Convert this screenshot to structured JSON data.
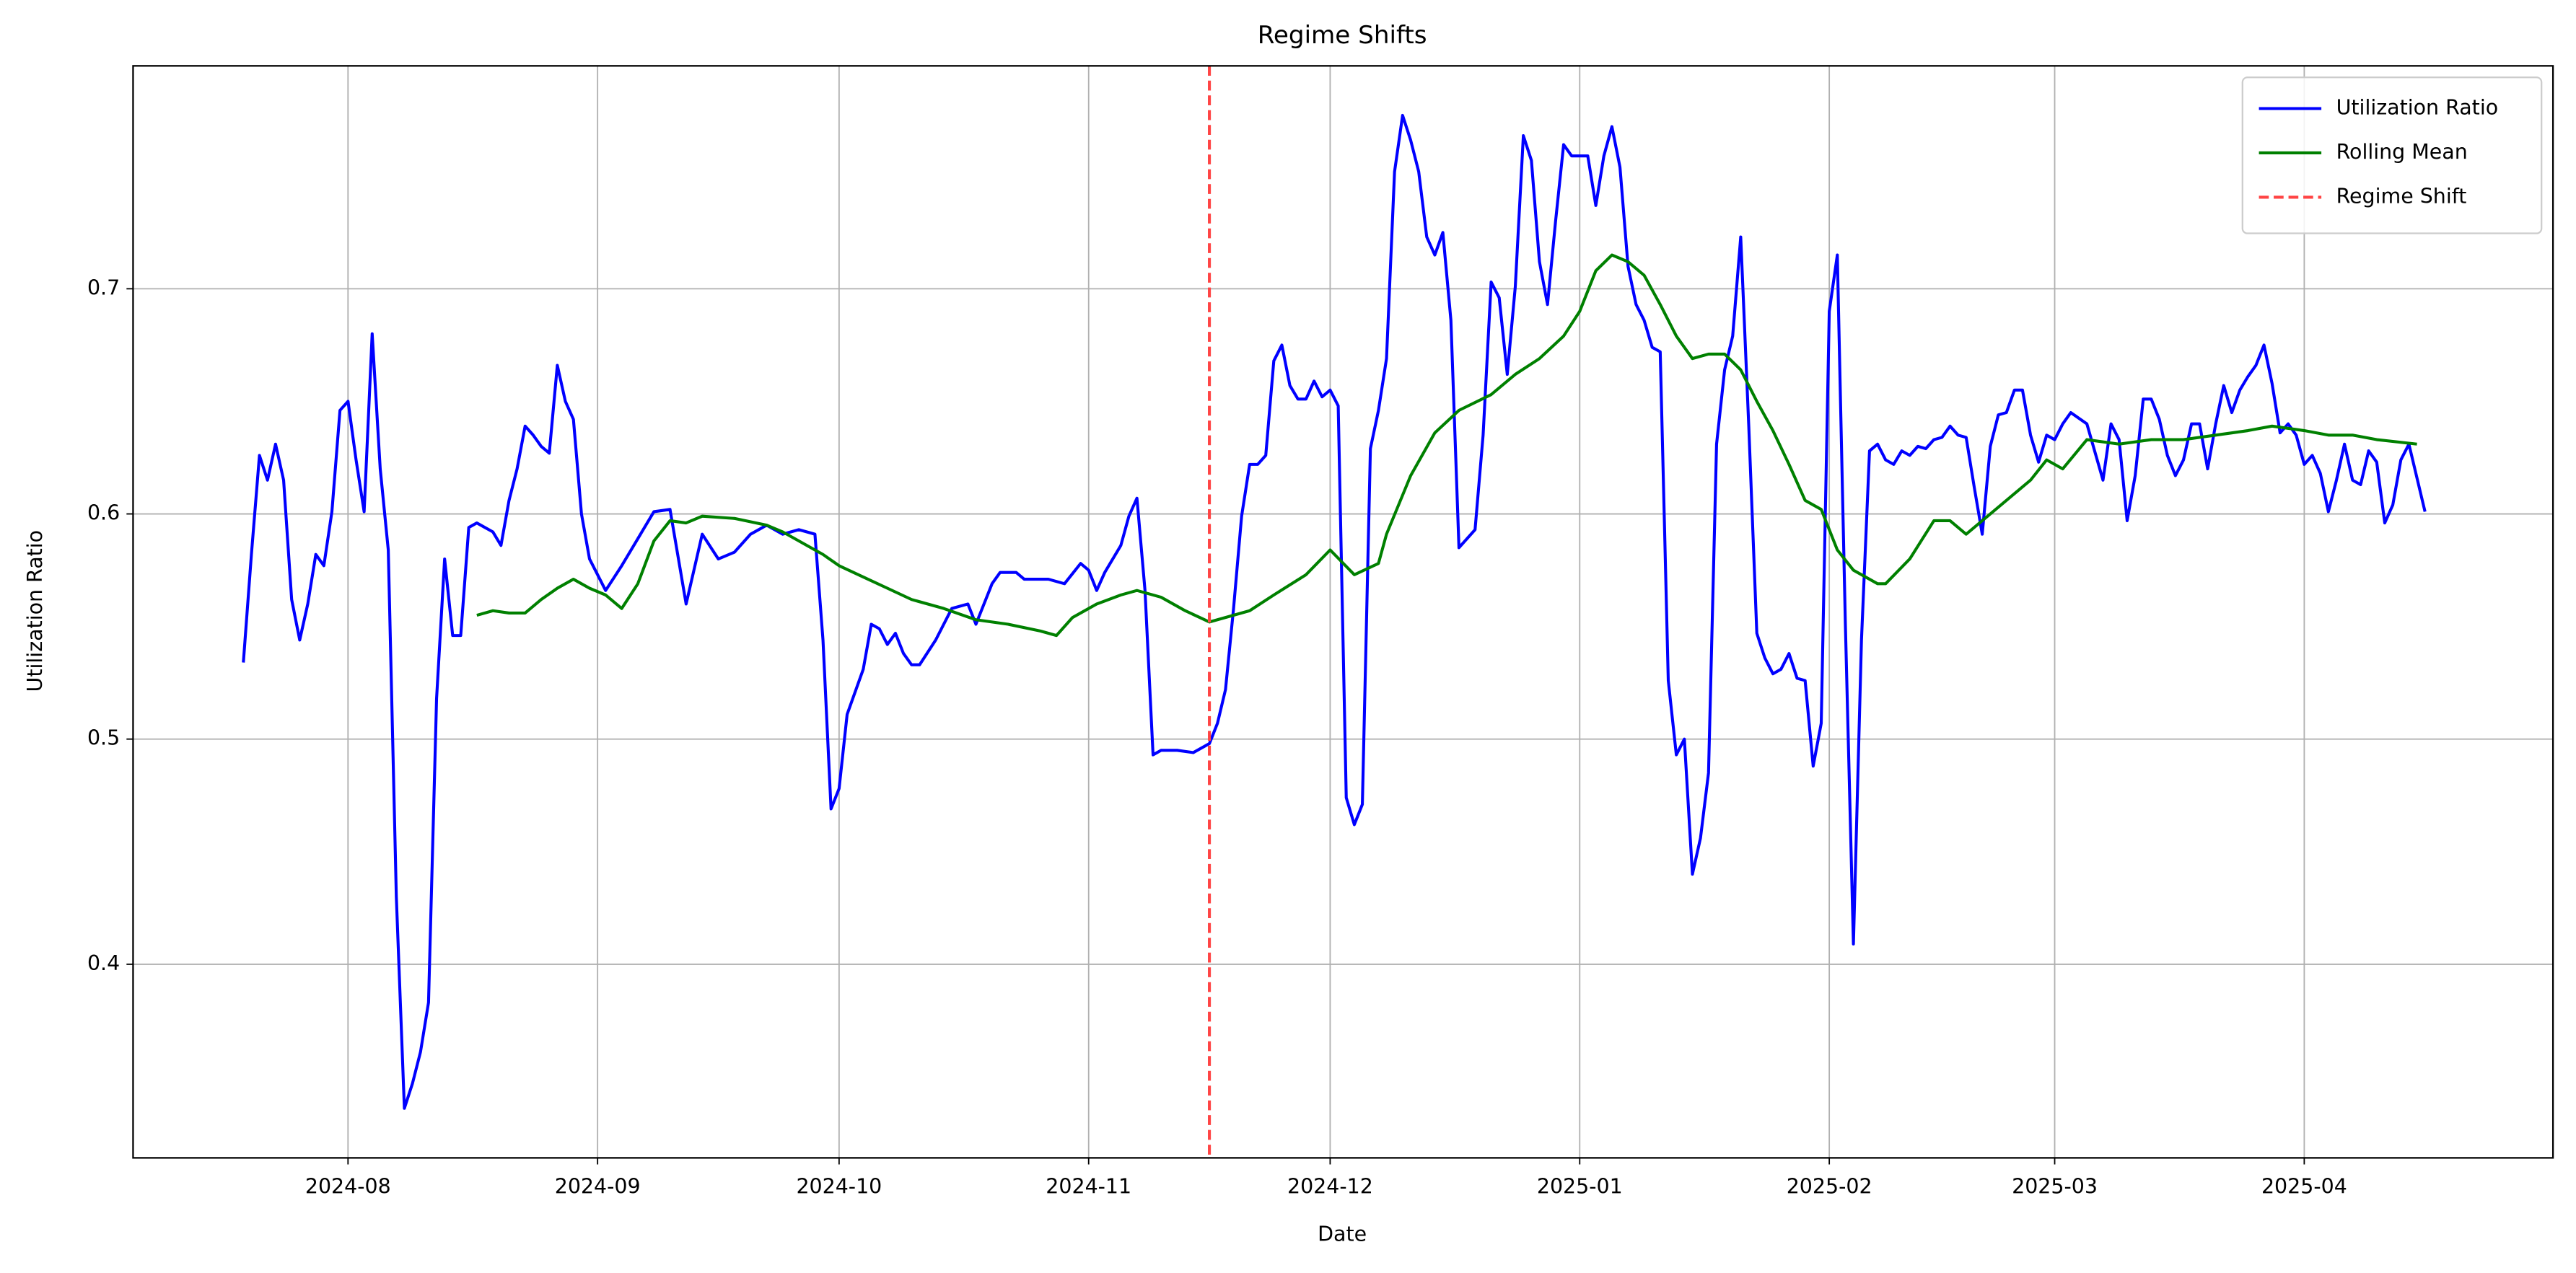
{
  "chart_data": {
    "type": "line",
    "title": "Regime Shifts",
    "xlabel": "Date",
    "ylabel": "Utilization Ratio",
    "xlim": [
      19909.3,
      20209.9
    ],
    "ylim": [
      0.314,
      0.799
    ],
    "xticks": [
      {
        "value": 19936,
        "label": "2024-08"
      },
      {
        "value": 19967,
        "label": "2024-09"
      },
      {
        "value": 19997,
        "label": "2024-10"
      },
      {
        "value": 20028,
        "label": "2024-11"
      },
      {
        "value": 20058,
        "label": "2024-12"
      },
      {
        "value": 20089,
        "label": "2025-01"
      },
      {
        "value": 20120,
        "label": "2025-02"
      },
      {
        "value": 20148,
        "label": "2025-03"
      },
      {
        "value": 20179,
        "label": "2025-04"
      }
    ],
    "yticks": [
      0.4,
      0.5,
      0.6,
      0.7
    ],
    "grid": true,
    "legend": "upper right",
    "series": [
      {
        "name": "Utilization Ratio",
        "color": "#0000ff",
        "x": [
          19923,
          19924,
          19925,
          19926,
          19927,
          19928,
          19929,
          19930,
          19931,
          19932,
          19933,
          19934,
          19935,
          19936,
          19937,
          19938,
          19939,
          19940,
          19941,
          19942,
          19943,
          19944,
          19945,
          19946,
          19947,
          19948,
          19949,
          19950,
          19951,
          19952,
          19953,
          19954,
          19955,
          19956,
          19957,
          19958,
          19959,
          19960,
          19961,
          19962,
          19963,
          19964,
          19965,
          19966,
          19968,
          19970,
          19972,
          19974,
          19976,
          19978,
          19980,
          19982,
          19984,
          19986,
          19988,
          19990,
          19992,
          19994,
          19995,
          19996,
          19997,
          19998,
          20000,
          20001,
          20002,
          20003,
          20004,
          20005,
          20006,
          20007,
          20009,
          20011,
          20013,
          20014,
          20016,
          20017,
          20019,
          20020,
          20023,
          20025,
          20027,
          20028,
          20029,
          20030,
          20032,
          20033,
          20034,
          20035,
          20036,
          20037,
          20039,
          20041,
          20043,
          20044,
          20045,
          20046,
          20047,
          20048,
          20049,
          20050,
          20051,
          20052,
          20053,
          20054,
          20055,
          20056,
          20057,
          20058,
          20059,
          20060,
          20061,
          20062,
          20063,
          20064,
          20065,
          20066,
          20067,
          20068,
          20069,
          20070,
          20071,
          20072,
          20073,
          20074,
          20075,
          20076,
          20077,
          20078,
          20079,
          20080,
          20081,
          20082,
          20083,
          20084,
          20085,
          20086,
          20087,
          20088,
          20090,
          20091,
          20092,
          20093,
          20094,
          20095,
          20096,
          20097,
          20098,
          20099,
          20100,
          20101,
          20102,
          20103,
          20104,
          20105,
          20106,
          20107,
          20108,
          20109,
          20110,
          20111,
          20112,
          20113,
          20114,
          20115,
          20116,
          20117,
          20118,
          20119,
          20120,
          20121,
          20122,
          20123,
          20124,
          20125,
          20126,
          20127,
          20128,
          20129,
          20130,
          20131,
          20132,
          20133,
          20134,
          20135,
          20136,
          20137,
          20138,
          20139,
          20140,
          20141,
          20142,
          20143,
          20144,
          20145,
          20146,
          20147,
          20148,
          20149,
          20150,
          20152,
          20154,
          20155,
          20156,
          20157,
          20158,
          20159,
          20160,
          20161,
          20162,
          20163,
          20164,
          20165,
          20166,
          20167,
          20168,
          20169,
          20170,
          20171,
          20172,
          20173,
          20174,
          20175,
          20176,
          20177,
          20178,
          20179,
          20180,
          20181,
          20182,
          20183,
          20184,
          20185,
          20186,
          20187,
          20188,
          20189,
          20190,
          20191,
          20192,
          20194
        ],
        "values": [
          0.534,
          0.582,
          0.626,
          0.615,
          0.631,
          0.615,
          0.562,
          0.544,
          0.56,
          0.582,
          0.577,
          0.601,
          0.646,
          0.65,
          0.624,
          0.601,
          0.68,
          0.62,
          0.584,
          0.43,
          0.336,
          0.347,
          0.361,
          0.383,
          0.518,
          0.58,
          0.546,
          0.546,
          0.594,
          0.596,
          0.594,
          0.592,
          0.586,
          0.606,
          0.62,
          0.639,
          0.635,
          0.63,
          0.627,
          0.666,
          0.65,
          0.642,
          0.6,
          0.58,
          0.566,
          0.577,
          0.589,
          0.601,
          0.602,
          0.56,
          0.591,
          0.58,
          0.583,
          0.591,
          0.595,
          0.591,
          0.593,
          0.591,
          0.544,
          0.469,
          0.478,
          0.511,
          0.531,
          0.551,
          0.549,
          0.542,
          0.547,
          0.538,
          0.533,
          0.533,
          0.544,
          0.558,
          0.56,
          0.551,
          0.569,
          0.574,
          0.574,
          0.571,
          0.571,
          0.569,
          0.578,
          0.575,
          0.566,
          0.574,
          0.586,
          0.599,
          0.607,
          0.566,
          0.493,
          0.495,
          0.495,
          0.494,
          0.498,
          0.507,
          0.522,
          0.558,
          0.599,
          0.622,
          0.622,
          0.626,
          0.668,
          0.675,
          0.657,
          0.651,
          0.651,
          0.659,
          0.652,
          0.655,
          0.648,
          0.474,
          0.462,
          0.471,
          0.629,
          0.646,
          0.669,
          0.752,
          0.777,
          0.766,
          0.752,
          0.723,
          0.715,
          0.725,
          0.686,
          0.585,
          0.589,
          0.593,
          0.635,
          0.703,
          0.696,
          0.662,
          0.701,
          0.768,
          0.757,
          0.712,
          0.693,
          0.73,
          0.764,
          0.759,
          0.759,
          0.737,
          0.759,
          0.772,
          0.754,
          0.71,
          0.693,
          0.686,
          0.674,
          0.672,
          0.526,
          0.493,
          0.5,
          0.44,
          0.456,
          0.485,
          0.631,
          0.664,
          0.679,
          0.723,
          0.639,
          0.547,
          0.536,
          0.529,
          0.531,
          0.538,
          0.527,
          0.526,
          0.488,
          0.507,
          0.69,
          0.715,
          0.551,
          0.409,
          0.544,
          0.628,
          0.631,
          0.624,
          0.622,
          0.628,
          0.626,
          0.63,
          0.629,
          0.633,
          0.634,
          0.639,
          0.635,
          0.634,
          0.612,
          0.591,
          0.63,
          0.644,
          0.645,
          0.655,
          0.655,
          0.635,
          0.623,
          0.635,
          0.633,
          0.64,
          0.645,
          0.64,
          0.615,
          0.64,
          0.633,
          0.597,
          0.617,
          0.651,
          0.651,
          0.642,
          0.626,
          0.617,
          0.624,
          0.64,
          0.64,
          0.62,
          0.64,
          0.657,
          0.645,
          0.655,
          0.661,
          0.666,
          0.675,
          0.658,
          0.636,
          0.64,
          0.635,
          0.622,
          0.626,
          0.618,
          0.601,
          0.615,
          0.631,
          0.615,
          0.613,
          0.628,
          0.623,
          0.596,
          0.604,
          0.624,
          0.631,
          0.601
        ]
      },
      {
        "name": "Rolling Mean",
        "color": "#008000",
        "x": [
          19952,
          19954,
          19956,
          19958,
          19960,
          19962,
          19964,
          19966,
          19968,
          19970,
          19972,
          19974,
          19976,
          19978,
          19980,
          19984,
          19988,
          19990,
          19992,
          19995,
          19997,
          20000,
          20003,
          20006,
          20010,
          20014,
          20018,
          20022,
          20024,
          20026,
          20029,
          20032,
          20034,
          20037,
          20040,
          20043,
          20045,
          20048,
          20051,
          20055,
          20058,
          20061,
          20064,
          20065,
          20068,
          20071,
          20074,
          20078,
          20081,
          20084,
          20087,
          20089,
          20091,
          20093,
          20095,
          20097,
          20099,
          20101,
          20103,
          20105,
          20107,
          20109,
          20111,
          20113,
          20115,
          20117,
          20119,
          20121,
          20123,
          20126,
          20127,
          20130,
          20133,
          20135,
          20137,
          20139,
          20142,
          20145,
          20147,
          20149,
          20152,
          20156,
          20160,
          20164,
          20168,
          20172,
          20175,
          20179,
          20182,
          20185,
          20188,
          20193
        ],
        "values": [
          0.555,
          0.557,
          0.556,
          0.556,
          0.562,
          0.567,
          0.571,
          0.567,
          0.564,
          0.558,
          0.569,
          0.588,
          0.597,
          0.596,
          0.599,
          0.598,
          0.595,
          0.592,
          0.588,
          0.582,
          0.577,
          0.572,
          0.567,
          0.562,
          0.558,
          0.553,
          0.551,
          0.548,
          0.546,
          0.554,
          0.56,
          0.564,
          0.566,
          0.563,
          0.557,
          0.552,
          0.554,
          0.557,
          0.564,
          0.573,
          0.584,
          0.573,
          0.578,
          0.591,
          0.617,
          0.636,
          0.646,
          0.653,
          0.662,
          0.669,
          0.679,
          0.69,
          0.708,
          0.715,
          0.712,
          0.706,
          0.693,
          0.679,
          0.669,
          0.671,
          0.671,
          0.664,
          0.65,
          0.637,
          0.622,
          0.606,
          0.602,
          0.584,
          0.575,
          0.569,
          0.569,
          0.58,
          0.597,
          0.597,
          0.591,
          0.597,
          0.606,
          0.615,
          0.624,
          0.62,
          0.633,
          0.631,
          0.633,
          0.633,
          0.635,
          0.637,
          0.639,
          0.637,
          0.635,
          0.635,
          0.633,
          0.631
        ]
      }
    ],
    "vlines": [
      {
        "name": "Regime Shift",
        "x": 20043,
        "color": "#ff4444",
        "style": "dashed"
      }
    ]
  }
}
